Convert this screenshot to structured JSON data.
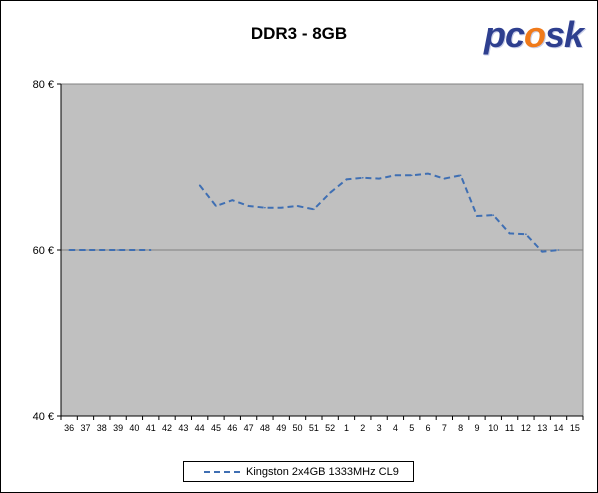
{
  "logo": {
    "text_pre": "pc",
    "text_flame": "o",
    "text_post": "sk"
  },
  "chart_data": {
    "type": "line",
    "title": "DDR3 - 8GB",
    "xlabel": "",
    "ylabel": "",
    "y_tick_labels": [
      "80 €",
      "60 €",
      "40 €"
    ],
    "ylim": [
      40,
      80
    ],
    "y_ticks": [
      40,
      60,
      80
    ],
    "grid": "horizontal major",
    "legend_position": "bottom",
    "categories": [
      "36",
      "37",
      "38",
      "39",
      "40",
      "41",
      "42",
      "43",
      "44",
      "45",
      "46",
      "47",
      "48",
      "49",
      "50",
      "51",
      "52",
      "1",
      "2",
      "3",
      "4",
      "5",
      "6",
      "7",
      "8",
      "9",
      "10",
      "11",
      "12",
      "13",
      "14",
      "15"
    ],
    "series": [
      {
        "name": "Kingston 2x4GB 1333MHz CL9",
        "color": "#3f6fb3",
        "style": "dashed",
        "values": [
          60,
          60,
          60,
          60,
          60,
          60,
          null,
          null,
          67.8,
          65.3,
          66.0,
          65.3,
          65.1,
          65.1,
          65.3,
          64.9,
          66.9,
          68.5,
          68.7,
          68.6,
          69.0,
          69.0,
          69.2,
          68.6,
          69.0,
          64.1,
          64.2,
          62.0,
          61.9,
          59.8,
          60.0,
          null
        ]
      }
    ]
  }
}
